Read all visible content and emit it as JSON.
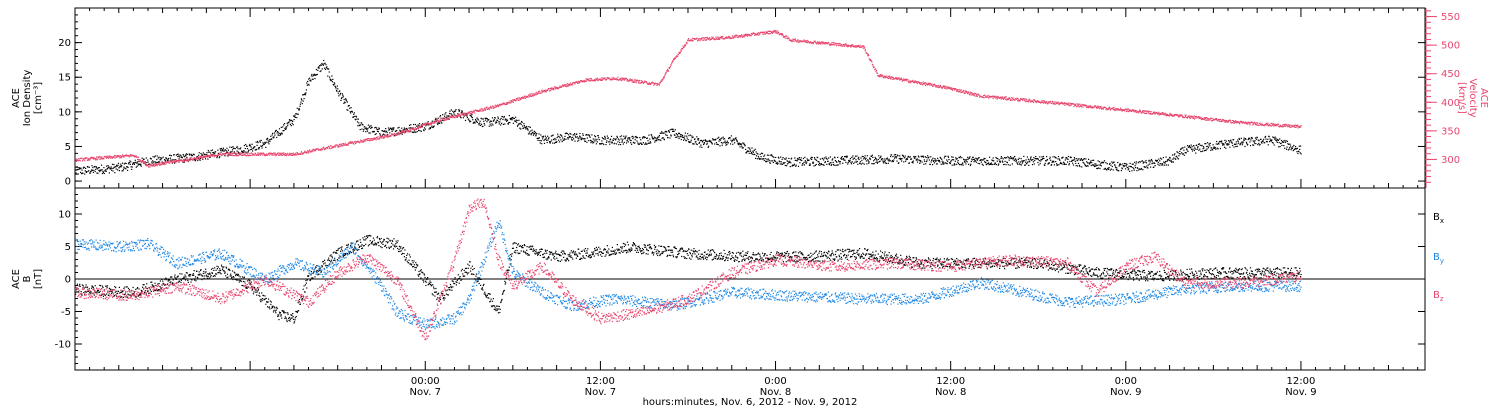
{
  "chart_data": [
    {
      "type": "scatter",
      "panel": "top",
      "xaxis": {
        "range": [
          "2012-11-06 00:00",
          "2012-11-09 20:30"
        ],
        "tick_labels": [
          {
            "time": "00:00",
            "date": "Nov. 7",
            "t": "2012-11-07 00:00"
          },
          {
            "time": "12:00",
            "date": "Nov. 7",
            "t": "2012-11-07 12:00"
          },
          {
            "time": "0:00",
            "date": "Nov. 8",
            "t": "2012-11-08 00:00"
          },
          {
            "time": "12:00",
            "date": "Nov. 8",
            "t": "2012-11-08 12:00"
          },
          {
            "time": "0:00",
            "date": "Nov. 9",
            "t": "2012-11-09 00:00"
          },
          {
            "time": "12:00",
            "date": "Nov. 9",
            "t": "2012-11-09 12:00"
          }
        ],
        "xlabel": "hours:minutes, Nov.  6, 2012 - Nov.  9, 2012"
      },
      "yleft": {
        "label_lines": [
          "ACE",
          "Ion Density",
          "[cm⁻³]"
        ],
        "ylim": [
          -1,
          25
        ],
        "ticks": [
          "0",
          "5",
          "10",
          "15",
          "20"
        ]
      },
      "yright": {
        "label_lines": [
          "ACE",
          "Velocity",
          "[km/s]"
        ],
        "ylim": [
          250,
          565
        ],
        "ticks": [
          "300",
          "350",
          "400",
          "450",
          "500",
          "550"
        ],
        "color": "#e8466e"
      },
      "series": [
        {
          "axis": "left",
          "color": "#000000",
          "points": [
            [
              "2012-11-06 00:00",
              1.5
            ],
            [
              "2012-11-06 03:00",
              2.0
            ],
            [
              "2012-11-06 05:00",
              3.0
            ],
            [
              "2012-11-06 08:00",
              3.5
            ],
            [
              "2012-11-06 11:00",
              4.5
            ],
            [
              "2012-11-06 13:00",
              5.5
            ],
            [
              "2012-11-06 15:00",
              9.0
            ],
            [
              "2012-11-06 16:00",
              14.5
            ],
            [
              "2012-11-06 17:00",
              17.0
            ],
            [
              "2012-11-06 18:00",
              13.0
            ],
            [
              "2012-11-06 19:30",
              8.0
            ],
            [
              "2012-11-06 21:00",
              7.0
            ],
            [
              "2012-11-07 00:00",
              8.0
            ],
            [
              "2012-11-07 02:00",
              10.0
            ],
            [
              "2012-11-07 04:00",
              8.5
            ],
            [
              "2012-11-07 06:00",
              9.0
            ],
            [
              "2012-11-07 08:00",
              6.0
            ],
            [
              "2012-11-07 10:00",
              6.5
            ],
            [
              "2012-11-07 12:00",
              6.0
            ],
            [
              "2012-11-07 15:00",
              6.0
            ],
            [
              "2012-11-07 17:00",
              7.0
            ],
            [
              "2012-11-07 19:00",
              5.5
            ],
            [
              "2012-11-07 21:00",
              6.0
            ],
            [
              "2012-11-07 23:00",
              3.5
            ],
            [
              "2012-11-08 01:00",
              2.8
            ],
            [
              "2012-11-08 04:00",
              3.0
            ],
            [
              "2012-11-08 08:00",
              3.3
            ],
            [
              "2012-11-08 12:00",
              3.0
            ],
            [
              "2012-11-08 16:00",
              3.0
            ],
            [
              "2012-11-08 20:00",
              3.0
            ],
            [
              "2012-11-09 00:00",
              2.0
            ],
            [
              "2012-11-09 03:00",
              3.0
            ],
            [
              "2012-11-09 04:00",
              4.5
            ],
            [
              "2012-11-09 07:00",
              5.5
            ],
            [
              "2012-11-09 10:00",
              6.0
            ],
            [
              "2012-11-09 12:00",
              4.5
            ]
          ]
        },
        {
          "axis": "right",
          "color": "#e8466e",
          "points": [
            [
              "2012-11-06 00:00",
              300
            ],
            [
              "2012-11-06 04:00",
              308
            ],
            [
              "2012-11-06 05:00",
              290
            ],
            [
              "2012-11-06 10:00",
              310
            ],
            [
              "2012-11-06 15:00",
              310
            ],
            [
              "2012-11-06 19:00",
              330
            ],
            [
              "2012-11-06 22:00",
              345
            ],
            [
              "2012-11-07 01:00",
              370
            ],
            [
              "2012-11-07 05:00",
              395
            ],
            [
              "2012-11-07 08:00",
              420
            ],
            [
              "2012-11-07 11:00",
              440
            ],
            [
              "2012-11-07 13:00",
              443
            ],
            [
              "2012-11-07 16:00",
              432
            ],
            [
              "2012-11-07 17:00",
              475
            ],
            [
              "2012-11-07 18:00",
              510
            ],
            [
              "2012-11-07 21:00",
              515
            ],
            [
              "2012-11-08 00:00",
              525
            ],
            [
              "2012-11-08 01:00",
              510
            ],
            [
              "2012-11-08 06:00",
              498
            ],
            [
              "2012-11-08 07:00",
              448
            ],
            [
              "2012-11-08 12:00",
              425
            ],
            [
              "2012-11-08 14:00",
              412
            ],
            [
              "2012-11-08 19:00",
              400
            ],
            [
              "2012-11-09 02:00",
              382
            ],
            [
              "2012-11-09 08:00",
              365
            ],
            [
              "2012-11-09 12:00",
              358
            ]
          ]
        }
      ]
    },
    {
      "type": "scatter",
      "panel": "bottom",
      "yleft": {
        "label_lines": [
          "ACE",
          "B",
          "[nT]"
        ],
        "ylim": [
          -14,
          14
        ],
        "ticks": [
          "-10",
          "-5",
          "0",
          "5",
          "10"
        ]
      },
      "legend": [
        {
          "name": "Bx",
          "main": "B",
          "sub": "x",
          "color": "#000000"
        },
        {
          "name": "By",
          "main": "B",
          "sub": "y",
          "color": "#1e88e5"
        },
        {
          "name": "Bz",
          "main": "B",
          "sub": "z",
          "color": "#e8466e"
        }
      ],
      "series": [
        {
          "name": "Bx",
          "color": "#000000",
          "points": [
            [
              "2012-11-06 00:00",
              -1.5
            ],
            [
              "2012-11-06 04:00",
              -2.0
            ],
            [
              "2012-11-06 07:00",
              0.0
            ],
            [
              "2012-11-06 10:00",
              1.5
            ],
            [
              "2012-11-06 12:00",
              -1.0
            ],
            [
              "2012-11-06 14:00",
              -5.5
            ],
            [
              "2012-11-06 15:00",
              -6.0
            ],
            [
              "2012-11-06 16:00",
              0.5
            ],
            [
              "2012-11-06 18:00",
              4.0
            ],
            [
              "2012-11-06 20:00",
              6.0
            ],
            [
              "2012-11-06 22:00",
              5.5
            ],
            [
              "2012-11-07 01:00",
              -3.0
            ],
            [
              "2012-11-07 03:00",
              2.0
            ],
            [
              "2012-11-07 05:00",
              -5.0
            ],
            [
              "2012-11-07 06:00",
              5.0
            ],
            [
              "2012-11-07 09:00",
              3.5
            ],
            [
              "2012-11-07 11:00",
              4.0
            ],
            [
              "2012-11-07 14:00",
              5.0
            ],
            [
              "2012-11-07 18:00",
              4.0
            ],
            [
              "2012-11-07 22:00",
              3.5
            ],
            [
              "2012-11-08 02:00",
              3.5
            ],
            [
              "2012-11-08 06:00",
              4.0
            ],
            [
              "2012-11-08 10:00",
              2.5
            ],
            [
              "2012-11-08 14:00",
              2.5
            ],
            [
              "2012-11-08 18:00",
              2.5
            ],
            [
              "2012-11-08 22:00",
              1.0
            ],
            [
              "2012-11-09 02:00",
              0.5
            ],
            [
              "2012-11-09 06:00",
              1.0
            ],
            [
              "2012-11-09 10:00",
              1.0
            ],
            [
              "2012-11-09 12:00",
              1.0
            ]
          ]
        },
        {
          "name": "By",
          "color": "#1e88e5",
          "points": [
            [
              "2012-11-06 00:00",
              5.5
            ],
            [
              "2012-11-06 03:00",
              5.0
            ],
            [
              "2012-11-06 05:00",
              5.5
            ],
            [
              "2012-11-06 07:00",
              2.5
            ],
            [
              "2012-11-06 10:00",
              4.0
            ],
            [
              "2012-11-06 13:00",
              0.0
            ],
            [
              "2012-11-06 15:00",
              2.5
            ],
            [
              "2012-11-06 17:00",
              1.0
            ],
            [
              "2012-11-06 19:00",
              5.0
            ],
            [
              "2012-11-06 21:00",
              -1.0
            ],
            [
              "2012-11-06 22:00",
              -5.0
            ],
            [
              "2012-11-07 00:00",
              -7.0
            ],
            [
              "2012-11-07 02:00",
              -6.0
            ],
            [
              "2012-11-07 03:00",
              -3.0
            ],
            [
              "2012-11-07 05:00",
              9.0
            ],
            [
              "2012-11-07 06:00",
              1.0
            ],
            [
              "2012-11-07 08:00",
              -2.0
            ],
            [
              "2012-11-07 10:00",
              -4.0
            ],
            [
              "2012-11-07 13:00",
              -3.0
            ],
            [
              "2012-11-07 17:00",
              -4.0
            ],
            [
              "2012-11-07 21:00",
              -2.0
            ],
            [
              "2012-11-08 01:00",
              -2.5
            ],
            [
              "2012-11-08 06:00",
              -3.0
            ],
            [
              "2012-11-08 10:00",
              -3.0
            ],
            [
              "2012-11-08 14:00",
              -0.5
            ],
            [
              "2012-11-08 17:00",
              -2.0
            ],
            [
              "2012-11-08 20:00",
              -3.5
            ],
            [
              "2012-11-09 00:00",
              -3.0
            ],
            [
              "2012-11-09 04:00",
              -1.5
            ],
            [
              "2012-11-09 08:00",
              -1.0
            ],
            [
              "2012-11-09 12:00",
              -1.0
            ]
          ]
        },
        {
          "name": "Bz",
          "color": "#e8466e",
          "points": [
            [
              "2012-11-06 00:00",
              -2.0
            ],
            [
              "2012-11-06 04:00",
              -2.5
            ],
            [
              "2012-11-06 07:00",
              -1.0
            ],
            [
              "2012-11-06 10:00",
              -3.0
            ],
            [
              "2012-11-06 13:00",
              0.0
            ],
            [
              "2012-11-06 16:00",
              -3.5
            ],
            [
              "2012-11-06 18:00",
              1.0
            ],
            [
              "2012-11-06 20:00",
              3.5
            ],
            [
              "2012-11-06 22:00",
              0.0
            ],
            [
              "2012-11-07 00:00",
              -9.0
            ],
            [
              "2012-11-07 02:00",
              3.0
            ],
            [
              "2012-11-07 03:00",
              11.0
            ],
            [
              "2012-11-07 04:00",
              12.0
            ],
            [
              "2012-11-07 05:00",
              3.0
            ],
            [
              "2012-11-07 06:00",
              -1.0
            ],
            [
              "2012-11-07 08:00",
              2.0
            ],
            [
              "2012-11-07 10:00",
              -3.0
            ],
            [
              "2012-11-07 12:00",
              -6.0
            ],
            [
              "2012-11-07 15:00",
              -5.0
            ],
            [
              "2012-11-07 18:00",
              -3.0
            ],
            [
              "2012-11-07 21:00",
              1.0
            ],
            [
              "2012-11-08 00:00",
              3.0
            ],
            [
              "2012-11-08 04:00",
              2.0
            ],
            [
              "2012-11-08 08:00",
              2.5
            ],
            [
              "2012-11-08 12:00",
              2.0
            ],
            [
              "2012-11-08 16:00",
              3.0
            ],
            [
              "2012-11-08 20:00",
              2.5
            ],
            [
              "2012-11-08 22:00",
              -2.0
            ],
            [
              "2012-11-09 00:00",
              2.0
            ],
            [
              "2012-11-09 02:00",
              3.5
            ],
            [
              "2012-11-09 04:00",
              -0.5
            ],
            [
              "2012-11-09 08:00",
              -0.5
            ],
            [
              "2012-11-09 12:00",
              0.5
            ]
          ]
        }
      ]
    }
  ]
}
